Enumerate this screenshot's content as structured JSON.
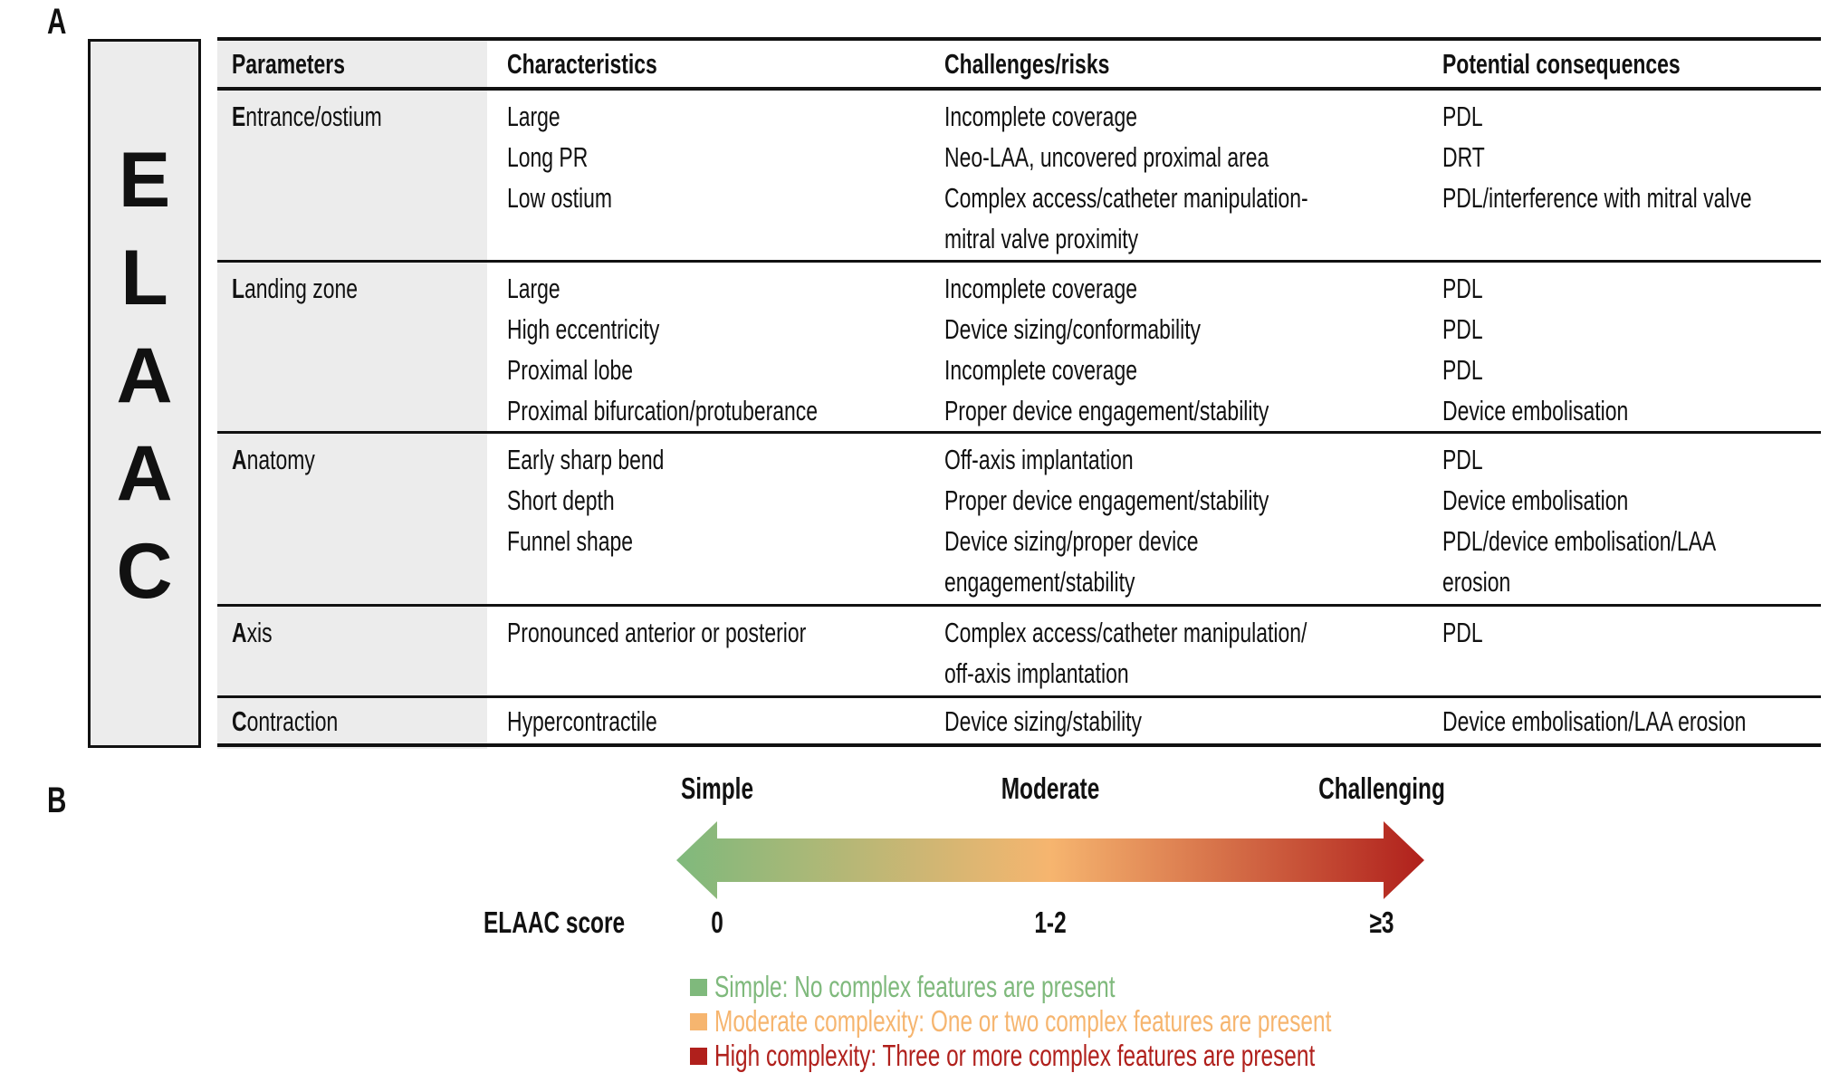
{
  "panel_a_label": "A",
  "panel_b_label": "B",
  "acronym_letters": [
    "E",
    "L",
    "A",
    "A",
    "C"
  ],
  "table": {
    "headers": [
      "Parameters",
      "Characteristics",
      "Challenges/risks",
      "Potential consequences"
    ],
    "rows": [
      {
        "initial": "E",
        "rest": "ntrance/ostium",
        "characteristics": [
          "Large",
          "Long PR",
          "Low ostium",
          ""
        ],
        "challenges": [
          "Incomplete coverage",
          "Neo-LAA, uncovered proximal area",
          "Complex access/catheter manipulation-",
          "mitral valve proximity"
        ],
        "consequences": [
          "PDL",
          "DRT",
          "PDL/interference with mitral valve",
          ""
        ]
      },
      {
        "initial": "L",
        "rest": "anding zone",
        "characteristics": [
          "Large",
          "High eccentricity",
          "Proximal lobe",
          "Proximal bifurcation/protuberance"
        ],
        "challenges": [
          "Incomplete coverage",
          "Device sizing/conformability",
          "Incomplete coverage",
          "Proper device engagement/stability"
        ],
        "consequences": [
          "PDL",
          "PDL",
          "PDL",
          "Device embolisation"
        ]
      },
      {
        "initial": "A",
        "rest": "natomy",
        "characteristics": [
          "Early sharp bend",
          "Short depth",
          "Funnel shape",
          ""
        ],
        "challenges": [
          "Off-axis implantation",
          "Proper device engagement/stability",
          "Device sizing/proper device",
          "engagement/stability"
        ],
        "consequences": [
          "PDL",
          "Device embolisation",
          "PDL/device embolisation/LAA",
          "erosion"
        ]
      },
      {
        "initial": "A",
        "rest": "xis",
        "characteristics": [
          "Pronounced anterior or posterior",
          ""
        ],
        "challenges": [
          "Complex access/catheter manipulation/",
          "off-axis implantation"
        ],
        "consequences": [
          "PDL",
          ""
        ]
      },
      {
        "initial": "C",
        "rest": "ontraction",
        "characteristics": [
          "Hypercontractile"
        ],
        "challenges": [
          "Device sizing/stability"
        ],
        "consequences": [
          "Device embolisation/LAA erosion"
        ]
      }
    ]
  },
  "scale": {
    "levels": [
      "Simple",
      "Moderate",
      "Challenging"
    ],
    "score_label": "ELAAC score",
    "scores": [
      "0",
      "1-2",
      "≥3"
    ],
    "colors": {
      "simple": "#7fb97c",
      "moderate": "#f6b56f",
      "challenging": "#b0201c"
    }
  },
  "legend": [
    {
      "text": "Simple: No complex features are present",
      "color": "#7fb97c"
    },
    {
      "text": "Moderate complexity: One or two complex features are present",
      "color": "#f6b56f"
    },
    {
      "text": "High complexity: Three or more complex features are present",
      "color": "#b0201c"
    }
  ]
}
